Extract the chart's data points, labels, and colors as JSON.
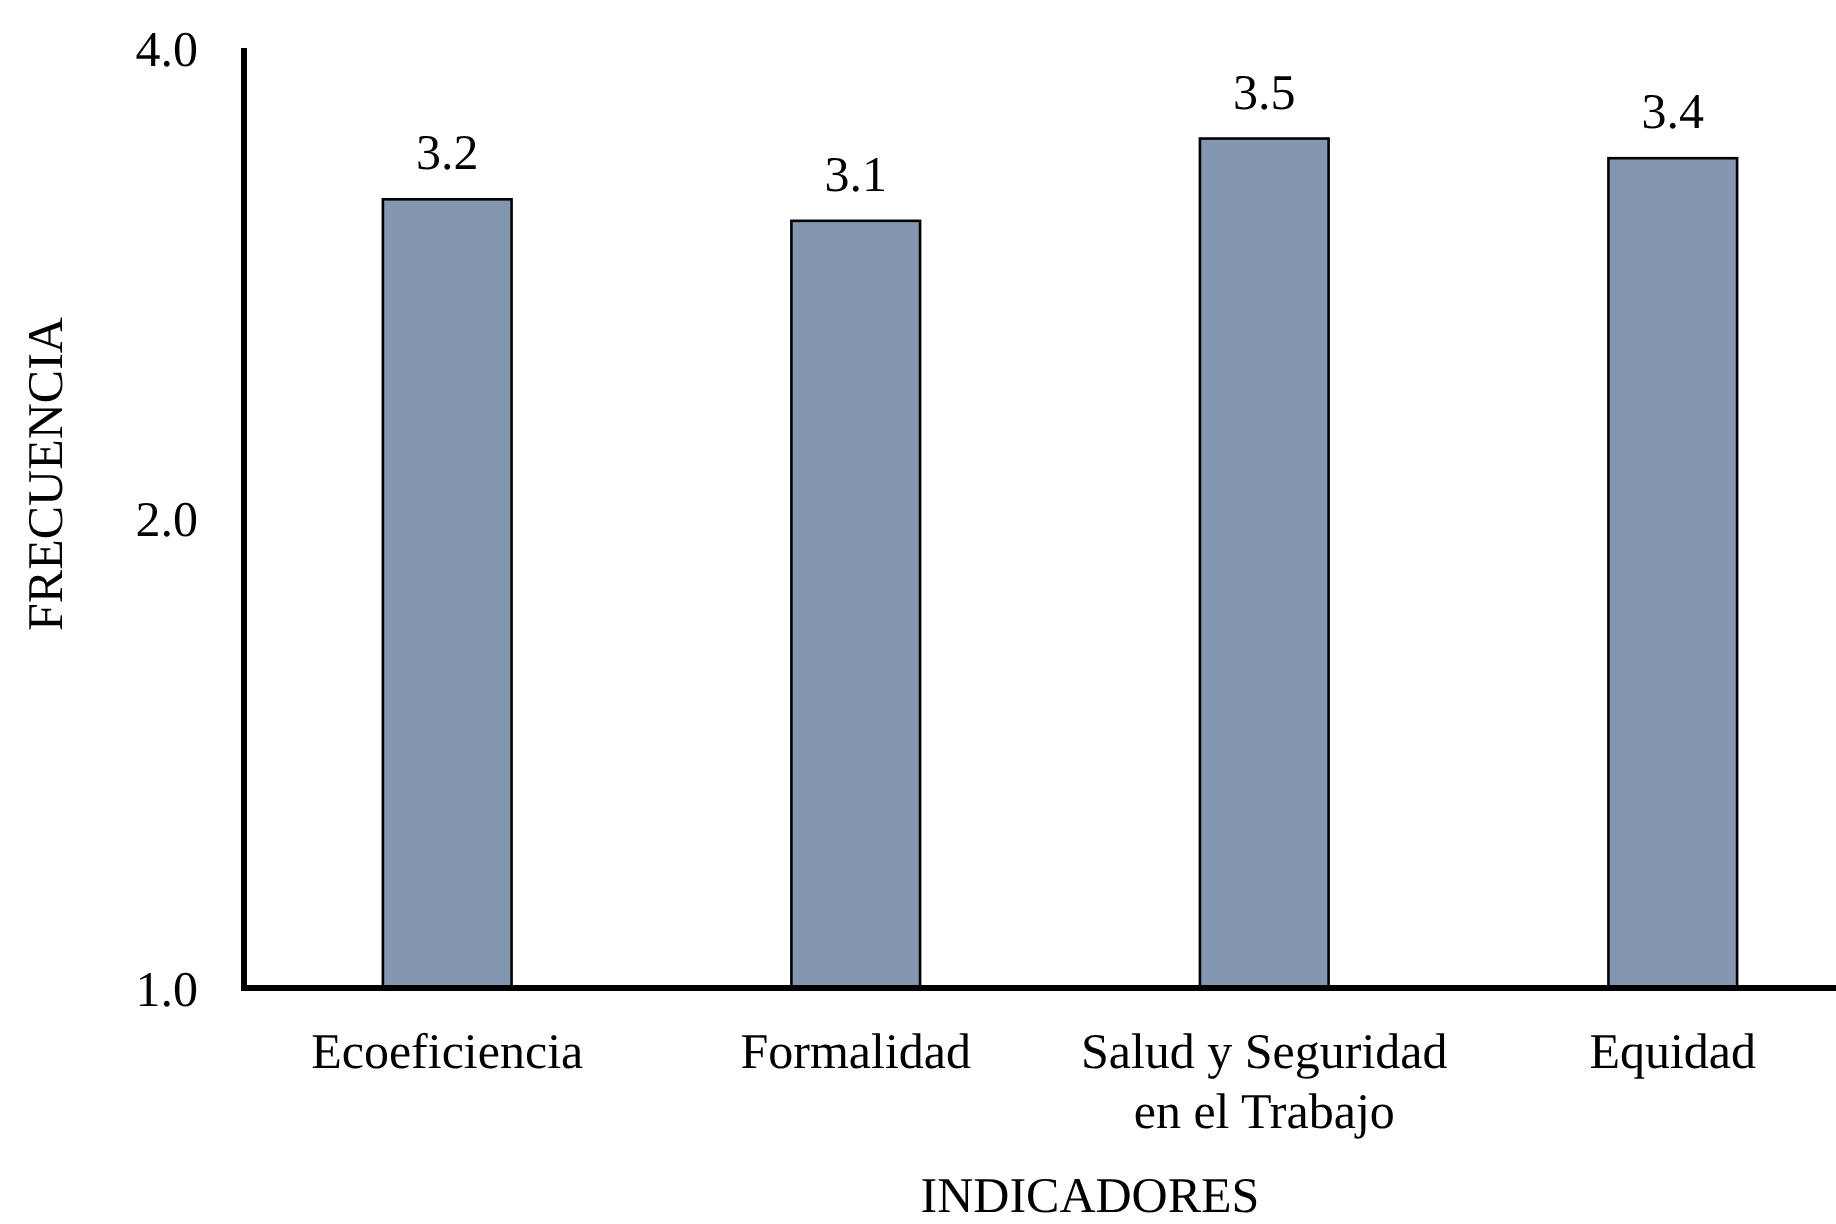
{
  "chart_data": {
    "type": "bar",
    "xlabel": "INDICADORES",
    "ylabel": "FRECUENCIA",
    "categories": [
      "Ecoeficiencia",
      "Formalidad",
      "Salud y Seguridad en el Trabajo",
      "Equidad"
    ],
    "values": [
      3.2,
      3.1,
      3.5,
      3.4
    ],
    "color": "#8497b0",
    "log": true,
    "ylim": [
      1,
      4
    ],
    "yticks": [
      {
        "value": 1,
        "label": "1.0"
      },
      {
        "value": 2,
        "label": "2.0"
      },
      {
        "value": 4,
        "label": "4.0"
      }
    ],
    "data_labels": true
  }
}
